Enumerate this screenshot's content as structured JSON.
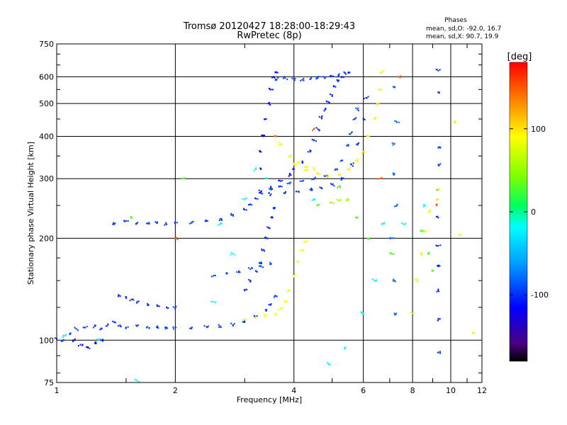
{
  "chart_data": {
    "type": "scatter",
    "title": "Tromsø 20120427 18:28:00-18:29:43",
    "subtitle": "RwPretec (8p)",
    "xlabel": "Frequency [MHz]",
    "ylabel": "Stationary phase Virtual Height [km]",
    "x_scale": "log",
    "y_scale": "log",
    "xlim": [
      1,
      12
    ],
    "ylim": [
      75,
      750
    ],
    "x_ticks": [
      1,
      2,
      4,
      6,
      8,
      10,
      12
    ],
    "y_ticks": [
      75,
      100,
      200,
      300,
      400,
      500,
      600,
      750
    ],
    "grid": true,
    "phases": {
      "heading": "Phases",
      "line_o": "mean, sd,O: -92.0, 16.7",
      "line_x": "mean, sd,X:  90.7, 19.9"
    },
    "colorbar": {
      "unit": "[deg]",
      "min": -180,
      "max": 180,
      "ticks": [
        100,
        0,
        -100
      ],
      "colormap": "rainbow"
    },
    "series": [
      {
        "phase": -95,
        "points": [
          [
            1.0,
            101
          ],
          [
            1.04,
            100
          ],
          [
            1.08,
            104
          ],
          [
            1.12,
            108
          ],
          [
            1.18,
            109
          ],
          [
            1.25,
            110
          ],
          [
            1.3,
            108
          ],
          [
            1.35,
            111
          ],
          [
            1.4,
            113
          ],
          [
            1.45,
            110
          ],
          [
            1.5,
            109
          ],
          [
            1.6,
            110
          ],
          [
            1.7,
            109.5
          ],
          [
            1.8,
            109
          ],
          [
            1.9,
            109
          ],
          [
            2.0,
            109
          ],
          [
            2.2,
            109
          ],
          [
            2.4,
            109.5
          ],
          [
            2.6,
            110
          ],
          [
            2.8,
            111
          ],
          [
            3.0,
            113
          ],
          [
            3.2,
            117
          ],
          [
            3.4,
            122
          ],
          [
            3.5,
            128
          ],
          [
            3.6,
            135
          ]
        ]
      },
      {
        "phase": -100,
        "points": [
          [
            1.45,
            135
          ],
          [
            1.5,
            134
          ],
          [
            1.55,
            132
          ],
          [
            1.6,
            130
          ],
          [
            1.7,
            128
          ],
          [
            1.8,
            126
          ],
          [
            1.9,
            125
          ],
          [
            2.0,
            125
          ]
        ]
      },
      {
        "phase": -98,
        "points": [
          [
            1.4,
            220
          ],
          [
            1.5,
            225
          ],
          [
            1.6,
            222
          ],
          [
            1.7,
            221
          ],
          [
            1.8,
            222
          ],
          [
            1.9,
            220
          ],
          [
            2.0,
            221
          ],
          [
            2.2,
            222
          ],
          [
            2.4,
            225
          ],
          [
            2.6,
            228
          ],
          [
            2.8,
            235
          ],
          [
            3.0,
            243
          ],
          [
            3.1,
            252
          ],
          [
            3.2,
            262
          ],
          [
            3.3,
            272
          ]
        ]
      },
      {
        "phase": -105,
        "points": [
          [
            3.3,
            275
          ],
          [
            3.5,
            282
          ],
          [
            3.7,
            295
          ],
          [
            3.9,
            308
          ],
          [
            4.0,
            320
          ],
          [
            4.2,
            335
          ],
          [
            4.4,
            360
          ],
          [
            4.5,
            390
          ],
          [
            4.6,
            420
          ],
          [
            4.7,
            455
          ],
          [
            4.8,
            480
          ],
          [
            4.9,
            505
          ],
          [
            5.0,
            530
          ],
          [
            5.1,
            560
          ],
          [
            5.2,
            585
          ],
          [
            5.3,
            600
          ],
          [
            5.5,
            615
          ]
        ]
      },
      {
        "phase": -90,
        "points": [
          [
            3.5,
            280
          ],
          [
            3.7,
            285
          ],
          [
            3.9,
            290
          ],
          [
            4.2,
            295
          ],
          [
            4.5,
            300
          ],
          [
            4.8,
            305
          ],
          [
            5.1,
            320
          ],
          [
            5.3,
            340
          ],
          [
            5.5,
            375
          ],
          [
            5.6,
            410
          ],
          [
            5.7,
            450
          ],
          [
            5.8,
            480
          ]
        ]
      },
      {
        "phase": -100,
        "points": [
          [
            3.5,
            270
          ],
          [
            3.8,
            272
          ],
          [
            4.1,
            275
          ],
          [
            4.4,
            278
          ],
          [
            4.7,
            282
          ],
          [
            5.0,
            288
          ],
          [
            5.3,
            300
          ],
          [
            5.6,
            330
          ],
          [
            5.8,
            380
          ],
          [
            6.0,
            450
          ],
          [
            6.1,
            520
          ]
        ]
      },
      {
        "phase": -110,
        "points": [
          [
            3.3,
            320
          ],
          [
            3.3,
            360
          ],
          [
            3.35,
            400
          ],
          [
            3.4,
            450
          ],
          [
            3.45,
            500
          ],
          [
            3.5,
            550
          ],
          [
            3.55,
            600
          ],
          [
            3.6,
            620
          ]
        ]
      },
      {
        "phase": -95,
        "points": [
          [
            3.6,
            590
          ],
          [
            3.8,
            595
          ],
          [
            4.0,
            590
          ],
          [
            4.2,
            588
          ],
          [
            4.4,
            590
          ],
          [
            4.6,
            595
          ],
          [
            4.8,
            598
          ],
          [
            5.0,
            600
          ],
          [
            5.2,
            605
          ],
          [
            5.4,
            615
          ]
        ]
      },
      {
        "phase": -100,
        "points": [
          [
            3.0,
            140
          ],
          [
            3.1,
            150
          ],
          [
            3.2,
            160
          ],
          [
            3.3,
            170
          ],
          [
            3.35,
            185
          ],
          [
            3.4,
            200
          ],
          [
            3.45,
            215
          ],
          [
            3.5,
            230
          ],
          [
            3.55,
            245
          ]
        ]
      },
      {
        "phase": -92,
        "points": [
          [
            2.5,
            155
          ],
          [
            2.7,
            157
          ],
          [
            2.9,
            160
          ],
          [
            3.1,
            162
          ],
          [
            3.3,
            165
          ],
          [
            3.5,
            168
          ]
        ]
      },
      {
        "phase": 90,
        "points": [
          [
            3.0,
            115
          ],
          [
            3.2,
            116
          ],
          [
            3.4,
            118
          ],
          [
            3.6,
            120
          ],
          [
            3.7,
            124
          ],
          [
            3.8,
            130
          ],
          [
            3.9,
            140
          ],
          [
            4.0,
            155
          ],
          [
            4.1,
            170
          ],
          [
            4.2,
            185
          ],
          [
            4.3,
            195
          ]
        ]
      },
      {
        "phase": 95,
        "points": [
          [
            4.0,
            330
          ],
          [
            4.3,
            320
          ],
          [
            4.6,
            310
          ],
          [
            4.9,
            305
          ],
          [
            5.2,
            310
          ],
          [
            5.5,
            320
          ],
          [
            5.8,
            340
          ],
          [
            6.0,
            360
          ],
          [
            6.2,
            400
          ],
          [
            6.4,
            450
          ],
          [
            6.5,
            500
          ],
          [
            6.6,
            550
          ],
          [
            6.7,
            620
          ]
        ]
      },
      {
        "phase": 88,
        "points": [
          [
            3.7,
            380
          ],
          [
            3.9,
            350
          ],
          [
            4.1,
            335
          ],
          [
            4.3,
            325
          ],
          [
            4.5,
            320
          ]
        ]
      },
      {
        "phase": 60,
        "points": [
          [
            5.0,
            255
          ],
          [
            5.2,
            258
          ],
          [
            5.5,
            260
          ]
        ]
      },
      {
        "phase": -110,
        "points": [
          [
            1.1,
            100
          ],
          [
            1.15,
            97
          ],
          [
            1.2,
            95
          ],
          [
            1.25,
            98
          ],
          [
            1.3,
            100
          ]
        ]
      },
      {
        "phase": -100,
        "points": [
          [
            9.3,
            92
          ],
          [
            9.3,
            115
          ],
          [
            9.3,
            140
          ],
          [
            9.3,
            165
          ],
          [
            9.3,
            190
          ],
          [
            9.3,
            230
          ],
          [
            9.3,
            280
          ],
          [
            9.3,
            330
          ],
          [
            9.3,
            370
          ],
          [
            9.3,
            540
          ],
          [
            9.3,
            625
          ]
        ]
      },
      {
        "phase": 80,
        "points": [
          [
            8.0,
            120
          ],
          [
            8.2,
            150
          ],
          [
            8.4,
            180
          ],
          [
            8.6,
            210
          ],
          [
            8.8,
            240
          ],
          [
            9.2,
            260
          ],
          [
            9.3,
            280
          ],
          [
            10.2,
            440
          ],
          [
            11.5,
            105
          ],
          [
            10.5,
            205
          ]
        ]
      },
      {
        "phase": -80,
        "points": [
          [
            7.2,
            120
          ],
          [
            7.2,
            150
          ],
          [
            7.1,
            200
          ],
          [
            7.3,
            250
          ],
          [
            7.2,
            310
          ],
          [
            7.2,
            380
          ],
          [
            7.3,
            440
          ],
          [
            7.2,
            560
          ]
        ]
      },
      {
        "phase": -20,
        "points": [
          [
            1.05,
            103
          ],
          [
            1.28,
            100
          ],
          [
            1.6,
            76
          ],
          [
            2.5,
            130
          ],
          [
            2.6,
            220
          ],
          [
            2.8,
            180
          ],
          [
            3.0,
            260
          ],
          [
            3.2,
            320
          ],
          [
            3.4,
            300
          ],
          [
            4.5,
            260
          ],
          [
            4.9,
            85
          ],
          [
            5.4,
            95
          ],
          [
            6.0,
            120
          ],
          [
            6.4,
            150
          ],
          [
            6.7,
            220
          ],
          [
            7.6,
            220
          ],
          [
            8.6,
            250
          ]
        ]
      },
      {
        "phase": 30,
        "points": [
          [
            1.55,
            230
          ],
          [
            2.1,
            300
          ],
          [
            4.6,
            250
          ],
          [
            5.2,
            285
          ],
          [
            5.8,
            230
          ],
          [
            6.2,
            200
          ],
          [
            7.1,
            180
          ],
          [
            8.4,
            210
          ],
          [
            8.8,
            180
          ],
          [
            9.0,
            160
          ]
        ]
      },
      {
        "phase": 150,
        "points": [
          [
            2.0,
            200
          ],
          [
            3.6,
            400
          ],
          [
            4.5,
            420
          ],
          [
            6.6,
            300
          ],
          [
            7.4,
            600
          ],
          [
            9.2,
            250
          ]
        ]
      }
    ]
  }
}
